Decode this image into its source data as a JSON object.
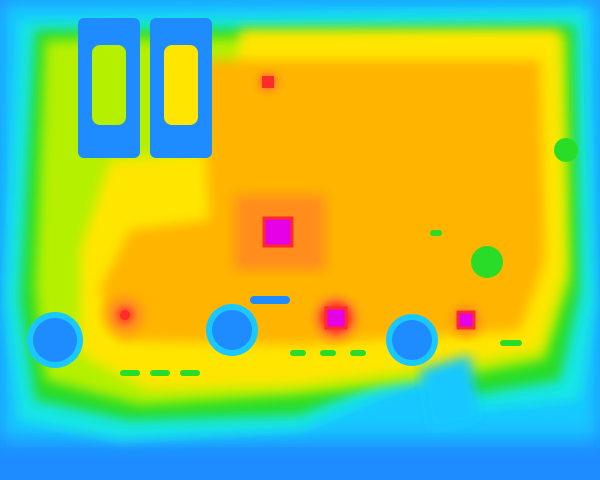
{
  "image": {
    "kind": "thermal-image",
    "subject": "circuit-board",
    "palette": {
      "cold": "#1e8cff",
      "cool": "#00c8ff",
      "cyan": "#19e6e6",
      "green": "#28dc28",
      "yellowgreen": "#b4f000",
      "yellow": "#ffe600",
      "orange": "#ffb400",
      "deep_orange": "#ff8c1e",
      "red": "#ff2a2a",
      "magenta": "#e600e6"
    }
  }
}
